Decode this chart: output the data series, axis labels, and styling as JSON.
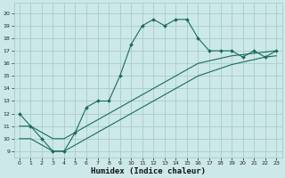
{
  "xlabel": "Humidex (Indice chaleur)",
  "bg_color": "#cce8e8",
  "grid_color": "#aacccc",
  "line_color": "#1a6b5a",
  "x_ticks": [
    0,
    1,
    2,
    3,
    4,
    5,
    6,
    7,
    8,
    9,
    10,
    11,
    12,
    13,
    14,
    15,
    16,
    17,
    18,
    19,
    20,
    21,
    22,
    23
  ],
  "y_ticks": [
    9,
    10,
    11,
    12,
    13,
    14,
    15,
    16,
    17,
    18,
    19,
    20
  ],
  "ylim": [
    8.5,
    20.8
  ],
  "xlim": [
    -0.5,
    23.5
  ],
  "main_x": [
    0,
    1,
    2,
    3,
    4,
    5,
    6,
    7,
    8,
    9,
    10,
    11,
    12,
    13,
    14,
    15,
    16,
    17,
    18,
    19,
    20,
    21,
    22,
    23
  ],
  "main_y": [
    12,
    11,
    10,
    9,
    9,
    10.5,
    12.5,
    13,
    13,
    15,
    17.5,
    19,
    19.5,
    19,
    19.5,
    19.5,
    18,
    17,
    17,
    17,
    16.5,
    17,
    16.5,
    17
  ],
  "line2_x": [
    0,
    1,
    2,
    3,
    4,
    5,
    6,
    7,
    8,
    9,
    10,
    11,
    12,
    13,
    14,
    15,
    16,
    17,
    18,
    19,
    20,
    21,
    22,
    23
  ],
  "line2_y": [
    11,
    11,
    10.5,
    10,
    10,
    10.5,
    11,
    11.5,
    12,
    12.5,
    13,
    13.5,
    14,
    14.5,
    15,
    15.5,
    16,
    16.2,
    16.4,
    16.6,
    16.7,
    16.8,
    16.9,
    17.0
  ],
  "line3_x": [
    0,
    1,
    2,
    3,
    4,
    5,
    6,
    7,
    8,
    9,
    10,
    11,
    12,
    13,
    14,
    15,
    16,
    17,
    18,
    19,
    20,
    21,
    22,
    23
  ],
  "line3_y": [
    10,
    10,
    9.5,
    9,
    9,
    9.5,
    10,
    10.5,
    11,
    11.5,
    12,
    12.5,
    13,
    13.5,
    14,
    14.5,
    15,
    15.3,
    15.6,
    15.9,
    16.1,
    16.3,
    16.5,
    16.6
  ]
}
